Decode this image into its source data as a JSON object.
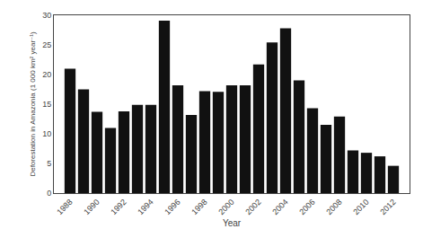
{
  "chart_data": {
    "type": "bar",
    "x": [
      1988,
      1989,
      1990,
      1991,
      1992,
      1993,
      1994,
      1995,
      1996,
      1997,
      1998,
      1999,
      2000,
      2001,
      2002,
      2003,
      2004,
      2005,
      2006,
      2007,
      2008,
      2009,
      2010,
      2011,
      2012
    ],
    "values": [
      21.0,
      17.5,
      13.7,
      11.0,
      13.8,
      14.9,
      14.9,
      29.1,
      18.2,
      13.2,
      17.2,
      17.1,
      18.2,
      18.2,
      21.7,
      25.4,
      27.8,
      19.0,
      14.3,
      11.5,
      12.9,
      7.2,
      6.8,
      6.2,
      4.6
    ],
    "color": "#111111",
    "xlabel": "Year",
    "ylabel": "Deforestation in Amazonia (1 000 km² year⁻¹)",
    "xlim": [
      1986.8,
      2013.2
    ],
    "xticks": [
      1988,
      1990,
      1992,
      1994,
      1996,
      1998,
      2000,
      2002,
      2004,
      2006,
      2008,
      2010,
      2012
    ],
    "ylim": [
      0,
      30
    ],
    "yticks": [
      0,
      5,
      10,
      15,
      20,
      25,
      30
    ],
    "grid": false
  }
}
